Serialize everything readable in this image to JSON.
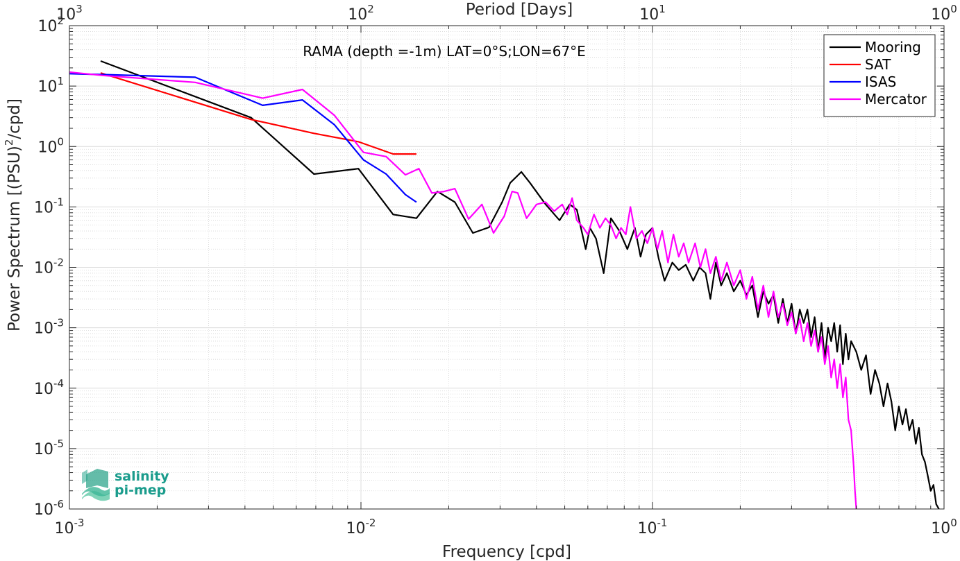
{
  "chart_data": {
    "type": "line",
    "title": "RAMA (depth =-1m) LAT=0°S;LON=67°E",
    "xlabel": "Frequency [cpd]",
    "ylabel": "Power Spectrum [(PSU)",
    "ylabel_sup": "2",
    "ylabel_tail": "/cpd]",
    "top_xlabel": "Period [Days]",
    "xscale": "log",
    "yscale": "log",
    "xlim": [
      0.001,
      1
    ],
    "ylim": [
      1e-06,
      100
    ],
    "grid": true,
    "legend_position": "top-right",
    "x_ticks": [
      {
        "base": "10",
        "exp": "-3",
        "value": 0.001
      },
      {
        "base": "10",
        "exp": "-2",
        "value": 0.01
      },
      {
        "base": "10",
        "exp": "-1",
        "value": 0.1
      },
      {
        "base": "10",
        "exp": "0",
        "value": 1
      }
    ],
    "top_ticks": [
      {
        "base": "10",
        "exp": "3",
        "value": 0.001
      },
      {
        "base": "10",
        "exp": "2",
        "value": 0.01
      },
      {
        "base": "10",
        "exp": "1",
        "value": 0.1
      },
      {
        "base": "10",
        "exp": "0",
        "value": 1
      }
    ],
    "y_ticks": [
      {
        "base": "10",
        "exp": "-6",
        "value": 1e-06
      },
      {
        "base": "10",
        "exp": "-5",
        "value": 1e-05
      },
      {
        "base": "10",
        "exp": "-4",
        "value": 0.0001
      },
      {
        "base": "10",
        "exp": "-3",
        "value": 0.001
      },
      {
        "base": "10",
        "exp": "-2",
        "value": 0.01
      },
      {
        "base": "10",
        "exp": "-1",
        "value": 0.1
      },
      {
        "base": "10",
        "exp": "0",
        "value": 1
      },
      {
        "base": "10",
        "exp": "1",
        "value": 10
      },
      {
        "base": "10",
        "exp": "2",
        "value": 100
      }
    ],
    "series": [
      {
        "name": "Mooring",
        "color": "#000000",
        "points": [
          [
            0.00128,
            26
          ],
          [
            0.0042,
            3.0
          ],
          [
            0.0069,
            0.35
          ],
          [
            0.0098,
            0.43
          ],
          [
            0.0129,
            0.075
          ],
          [
            0.0155,
            0.065
          ],
          [
            0.0183,
            0.18
          ],
          [
            0.021,
            0.12
          ],
          [
            0.0242,
            0.037
          ],
          [
            0.0275,
            0.046
          ],
          [
            0.0305,
            0.12
          ],
          [
            0.0325,
            0.25
          ],
          [
            0.0355,
            0.38
          ],
          [
            0.038,
            0.25
          ],
          [
            0.043,
            0.11
          ],
          [
            0.048,
            0.06
          ],
          [
            0.052,
            0.11
          ],
          [
            0.055,
            0.09
          ],
          [
            0.059,
            0.02
          ],
          [
            0.061,
            0.045
          ],
          [
            0.064,
            0.03
          ],
          [
            0.068,
            0.008
          ],
          [
            0.072,
            0.065
          ],
          [
            0.077,
            0.04
          ],
          [
            0.082,
            0.02
          ],
          [
            0.087,
            0.045
          ],
          [
            0.091,
            0.015
          ],
          [
            0.095,
            0.035
          ],
          [
            0.1,
            0.045
          ],
          [
            0.105,
            0.014
          ],
          [
            0.11,
            0.006
          ],
          [
            0.117,
            0.012
          ],
          [
            0.123,
            0.009
          ],
          [
            0.13,
            0.011
          ],
          [
            0.138,
            0.006
          ],
          [
            0.145,
            0.01
          ],
          [
            0.152,
            0.008
          ],
          [
            0.158,
            0.003
          ],
          [
            0.165,
            0.012
          ],
          [
            0.172,
            0.005
          ],
          [
            0.18,
            0.008
          ],
          [
            0.19,
            0.004
          ],
          [
            0.2,
            0.006
          ],
          [
            0.21,
            0.0035
          ],
          [
            0.22,
            0.005
          ],
          [
            0.23,
            0.0015
          ],
          [
            0.24,
            0.004
          ],
          [
            0.25,
            0.0025
          ],
          [
            0.26,
            0.0035
          ],
          [
            0.27,
            0.0012
          ],
          [
            0.28,
            0.003
          ],
          [
            0.29,
            0.0012
          ],
          [
            0.3,
            0.0025
          ],
          [
            0.31,
            0.0008
          ],
          [
            0.32,
            0.002
          ],
          [
            0.33,
            0.0012
          ],
          [
            0.34,
            0.002
          ],
          [
            0.35,
            0.0007
          ],
          [
            0.36,
            0.0015
          ],
          [
            0.37,
            0.0004
          ],
          [
            0.38,
            0.0012
          ],
          [
            0.39,
            0.0003
          ],
          [
            0.4,
            0.001
          ],
          [
            0.41,
            0.0006
          ],
          [
            0.42,
            0.0012
          ],
          [
            0.43,
            0.0004
          ],
          [
            0.44,
            0.0011
          ],
          [
            0.45,
            0.00025
          ],
          [
            0.46,
            0.0008
          ],
          [
            0.47,
            0.0003
          ],
          [
            0.48,
            0.0006
          ],
          [
            0.5,
            0.0004
          ],
          [
            0.52,
            0.0002
          ],
          [
            0.54,
            0.00035
          ],
          [
            0.56,
            8e-05
          ],
          [
            0.58,
            0.0002
          ],
          [
            0.6,
            0.00012
          ],
          [
            0.62,
            5e-05
          ],
          [
            0.64,
            0.00012
          ],
          [
            0.66,
            6e-05
          ],
          [
            0.68,
            2e-05
          ],
          [
            0.7,
            5e-05
          ],
          [
            0.72,
            2.5e-05
          ],
          [
            0.74,
            4.5e-05
          ],
          [
            0.76,
            2e-05
          ],
          [
            0.78,
            3e-05
          ],
          [
            0.8,
            1.2e-05
          ],
          [
            0.82,
            2.2e-05
          ],
          [
            0.84,
            8e-06
          ],
          [
            0.86,
            6e-06
          ],
          [
            0.88,
            3.5e-06
          ],
          [
            0.9,
            2e-06
          ],
          [
            0.92,
            2.5e-06
          ],
          [
            0.94,
            1.2e-06
          ],
          [
            0.96,
            1e-06
          ]
        ]
      },
      {
        "name": "SAT",
        "color": "#ff0000",
        "points": [
          [
            0.00128,
            16.5
          ],
          [
            0.0042,
            2.8
          ],
          [
            0.0069,
            1.65
          ],
          [
            0.0098,
            1.2
          ],
          [
            0.0129,
            0.75
          ],
          [
            0.0155,
            0.75
          ]
        ]
      },
      {
        "name": "ISAS",
        "color": "#0000ff",
        "points": [
          [
            0.001,
            16
          ],
          [
            0.0013,
            15.5
          ],
          [
            0.0027,
            14
          ],
          [
            0.0046,
            4.8
          ],
          [
            0.0063,
            5.9
          ],
          [
            0.0081,
            2.3
          ],
          [
            0.0102,
            0.6
          ],
          [
            0.0122,
            0.35
          ],
          [
            0.0142,
            0.16
          ],
          [
            0.0155,
            0.12
          ]
        ]
      },
      {
        "name": "Mercator",
        "color": "#ff00ff",
        "points": [
          [
            0.001,
            17
          ],
          [
            0.0013,
            15
          ],
          [
            0.0027,
            11.5
          ],
          [
            0.0046,
            6.3
          ],
          [
            0.0063,
            8.8
          ],
          [
            0.0081,
            3.3
          ],
          [
            0.0102,
            0.8
          ],
          [
            0.0122,
            0.68
          ],
          [
            0.0142,
            0.34
          ],
          [
            0.0158,
            0.43
          ],
          [
            0.0175,
            0.17
          ],
          [
            0.0193,
            0.18
          ],
          [
            0.021,
            0.2
          ],
          [
            0.0234,
            0.063
          ],
          [
            0.026,
            0.11
          ],
          [
            0.0285,
            0.037
          ],
          [
            0.031,
            0.07
          ],
          [
            0.033,
            0.18
          ],
          [
            0.0345,
            0.17
          ],
          [
            0.037,
            0.065
          ],
          [
            0.04,
            0.11
          ],
          [
            0.043,
            0.12
          ],
          [
            0.046,
            0.085
          ],
          [
            0.049,
            0.11
          ],
          [
            0.051,
            0.075
          ],
          [
            0.053,
            0.14
          ],
          [
            0.055,
            0.06
          ],
          [
            0.058,
            0.045
          ],
          [
            0.06,
            0.035
          ],
          [
            0.063,
            0.075
          ],
          [
            0.066,
            0.045
          ],
          [
            0.069,
            0.065
          ],
          [
            0.072,
            0.05
          ],
          [
            0.075,
            0.03
          ],
          [
            0.078,
            0.045
          ],
          [
            0.081,
            0.035
          ],
          [
            0.084,
            0.1
          ],
          [
            0.088,
            0.03
          ],
          [
            0.092,
            0.04
          ],
          [
            0.096,
            0.025
          ],
          [
            0.1,
            0.045
          ],
          [
            0.104,
            0.02
          ],
          [
            0.108,
            0.04
          ],
          [
            0.113,
            0.012
          ],
          [
            0.118,
            0.035
          ],
          [
            0.123,
            0.015
          ],
          [
            0.128,
            0.025
          ],
          [
            0.133,
            0.012
          ],
          [
            0.14,
            0.025
          ],
          [
            0.146,
            0.01
          ],
          [
            0.152,
            0.02
          ],
          [
            0.158,
            0.008
          ],
          [
            0.165,
            0.015
          ],
          [
            0.172,
            0.006
          ],
          [
            0.18,
            0.012
          ],
          [
            0.19,
            0.005
          ],
          [
            0.2,
            0.009
          ],
          [
            0.21,
            0.003
          ],
          [
            0.22,
            0.007
          ],
          [
            0.23,
            0.002
          ],
          [
            0.24,
            0.005
          ],
          [
            0.25,
            0.0015
          ],
          [
            0.26,
            0.004
          ],
          [
            0.27,
            0.0015
          ],
          [
            0.28,
            0.0025
          ],
          [
            0.29,
            0.0011
          ],
          [
            0.3,
            0.0018
          ],
          [
            0.31,
            0.0008
          ],
          [
            0.32,
            0.0014
          ],
          [
            0.33,
            0.0006
          ],
          [
            0.34,
            0.0012
          ],
          [
            0.35,
            0.0005
          ],
          [
            0.36,
            0.0009
          ],
          [
            0.37,
            0.0004
          ],
          [
            0.38,
            0.0007
          ],
          [
            0.39,
            0.00025
          ],
          [
            0.4,
            0.0005
          ],
          [
            0.41,
            0.00015
          ],
          [
            0.42,
            0.0003
          ],
          [
            0.43,
            0.0001
          ],
          [
            0.44,
            0.00025
          ],
          [
            0.45,
            7e-05
          ],
          [
            0.46,
            0.00015
          ],
          [
            0.47,
            3e-05
          ],
          [
            0.48,
            2e-05
          ],
          [
            0.49,
            5e-06
          ],
          [
            0.495,
            2e-06
          ],
          [
            0.5,
            1e-06
          ]
        ]
      }
    ]
  },
  "logo": {
    "line1": "salinity",
    "line2": "pi-mep",
    "color": "#1a9c8c"
  }
}
